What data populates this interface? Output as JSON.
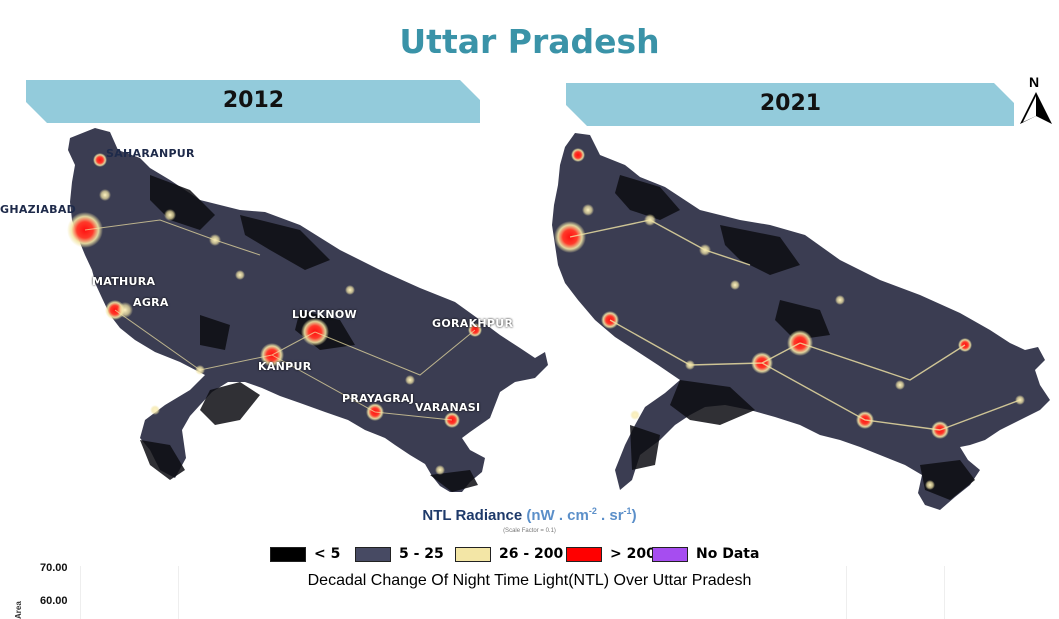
{
  "title": "Uttar Pradesh",
  "panels": [
    {
      "year": "2012",
      "cities": [
        "SAHARANPUR",
        "GHAZIABAD",
        "MATHURA",
        "AGRA",
        "LUCKNOW",
        "GORAKHPUR",
        "KANPUR",
        "PRAYAGRAJ",
        "VARANASI"
      ]
    },
    {
      "year": "2021"
    }
  ],
  "north_arrow": {
    "label": "N",
    "icon": "north-arrow-icon"
  },
  "legend": {
    "title": "NTL Radiance",
    "unit_open": "(nW . cm",
    "unit_exp1": "-2",
    "unit_mid": " . sr",
    "unit_exp2": "-1",
    "unit_close": ")",
    "scale_note": "(Scale Factor = 0.1)",
    "items": [
      {
        "label": "< 5",
        "color": "#000000"
      },
      {
        "label": "5 - 25",
        "color": "#474a63"
      },
      {
        "label": "26 - 200",
        "color": "#f3e6a6"
      },
      {
        "label": "> 200",
        "color": "#ff0000"
      },
      {
        "label": "No Data",
        "color": "#a64df0"
      }
    ]
  },
  "chart": {
    "title": "Decadal Change Of Night Time Light(NTL) Over Uttar Pradesh",
    "ylabel": "Area",
    "yticks": [
      "70.00",
      "60.00"
    ]
  },
  "colors": {
    "title": "#3a93a8",
    "banner": "#93cbdb",
    "map_base": "#3b3d52",
    "map_dark": "#0d0d12"
  }
}
